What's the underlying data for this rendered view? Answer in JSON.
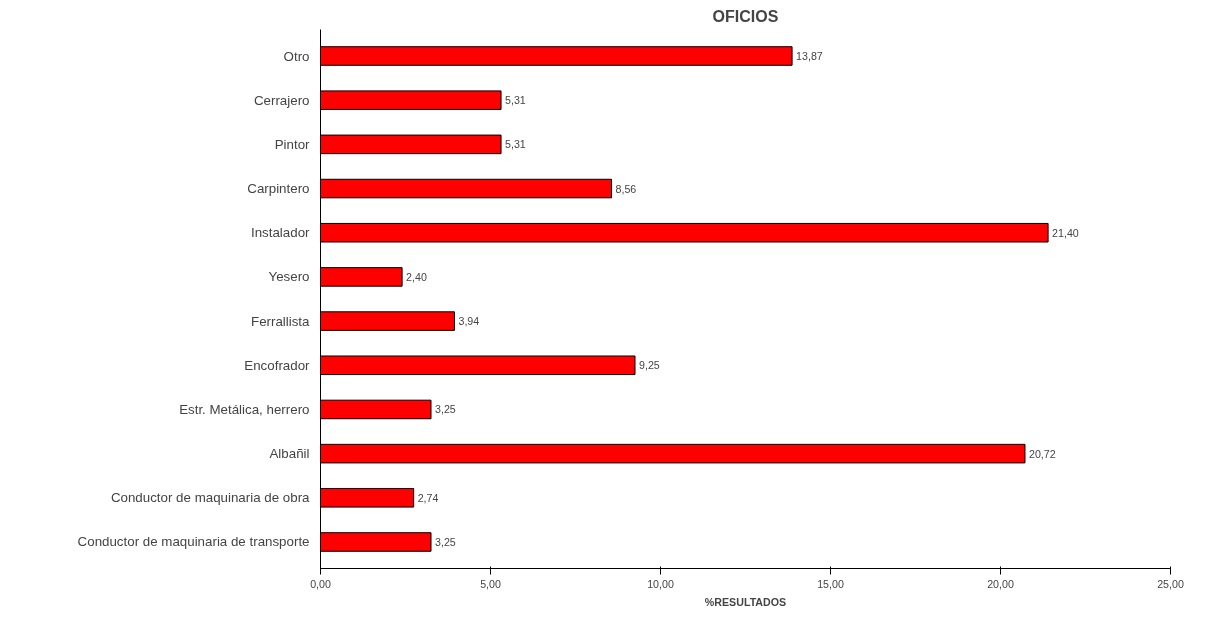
{
  "chart_data": {
    "type": "bar",
    "orientation": "horizontal",
    "title": "OFICIOS",
    "xlabel": "%RESULTADOS",
    "categories": [
      "Otro",
      "Cerrajero",
      "Pintor",
      "Carpintero",
      "Instalador",
      "Yesero",
      "Ferrallista",
      "Encofrador",
      "Estr. Metálica, herrero",
      "Albañil",
      "Conductor de maquinaria de obra",
      "Conductor de maquinaria de transporte"
    ],
    "values": [
      13.87,
      5.31,
      5.31,
      8.56,
      21.4,
      2.4,
      3.94,
      9.25,
      3.25,
      20.72,
      2.74,
      3.25
    ],
    "value_labels": [
      "13,87",
      "5,31",
      "5,31",
      "8,56",
      "21,40",
      "2,40",
      "3,94",
      "9,25",
      "3,25",
      "20,72",
      "2,74",
      "3,25"
    ],
    "color": "#ff0000",
    "xlim": [
      0,
      25
    ],
    "xticks": [
      {
        "value": 0,
        "label": "0,00"
      },
      {
        "value": 5,
        "label": "5,00"
      },
      {
        "value": 10,
        "label": "10,00"
      },
      {
        "value": 15,
        "label": "15,00"
      },
      {
        "value": 20,
        "label": "20,00"
      },
      {
        "value": 25,
        "label": "25,00"
      }
    ],
    "grid": false
  }
}
